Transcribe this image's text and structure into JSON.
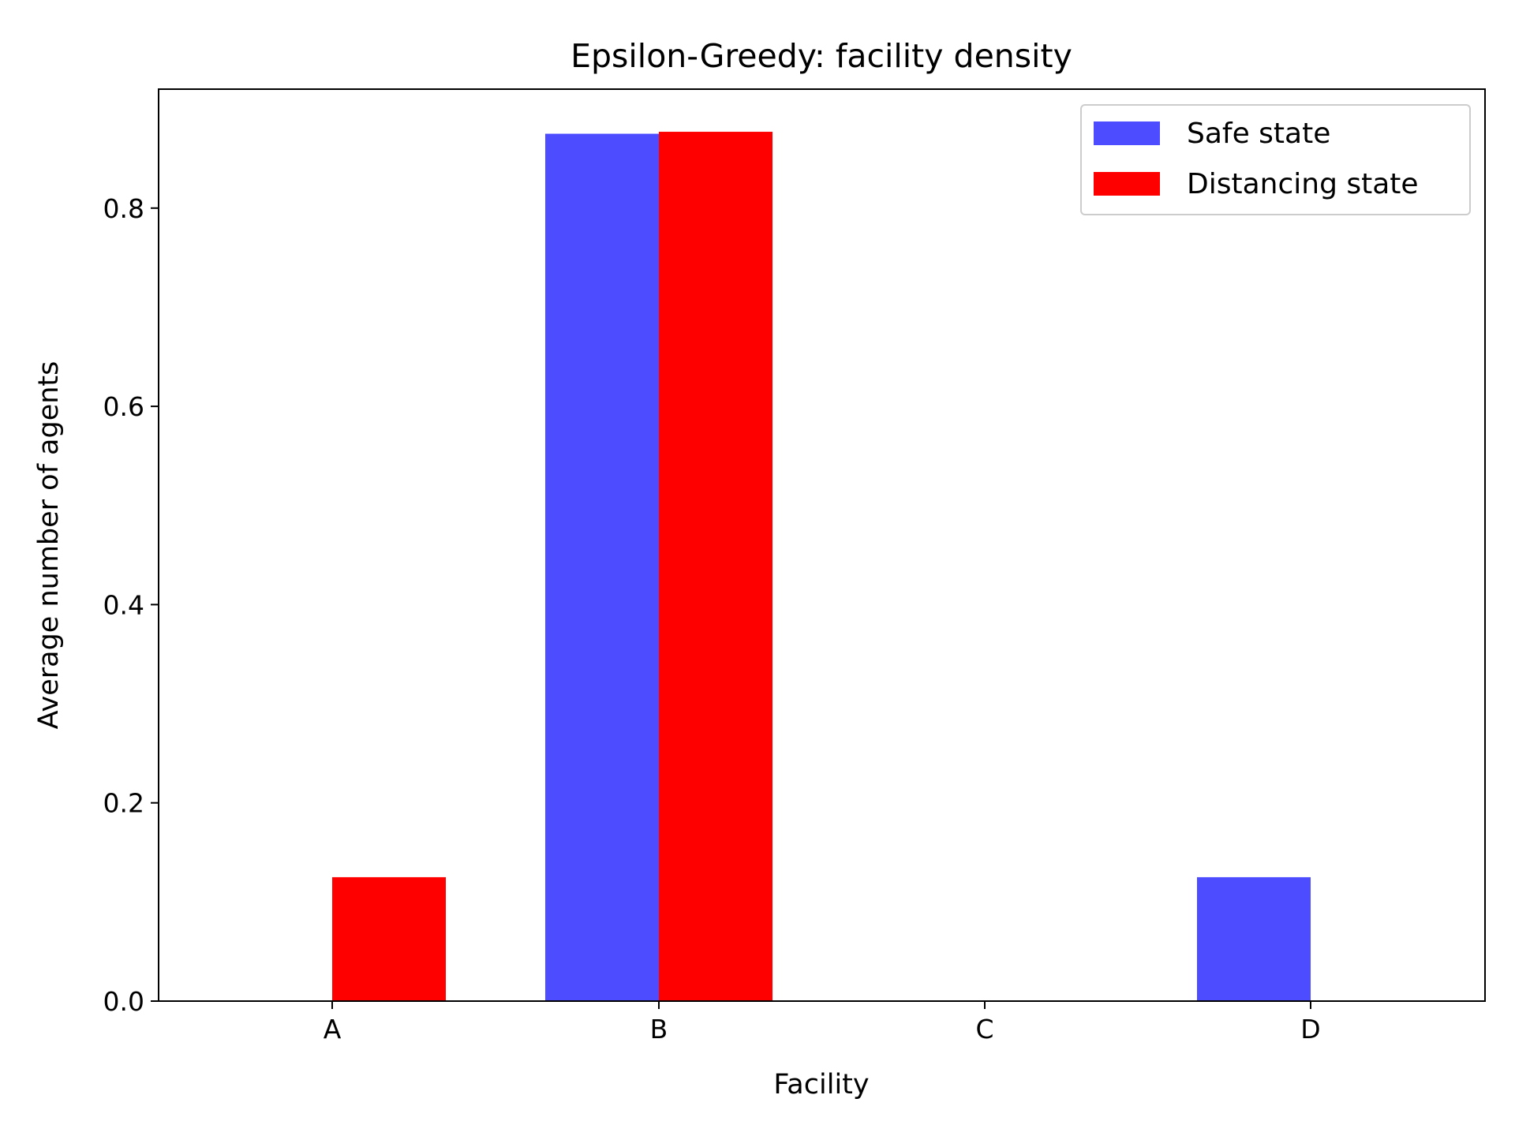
{
  "chart_data": {
    "type": "bar",
    "title": "Epsilon-Greedy: facility density",
    "xlabel": "Facility",
    "ylabel": "Average number of agents",
    "categories": [
      "A",
      "B",
      "C",
      "D"
    ],
    "series": [
      {
        "name": "Safe state",
        "values": [
          0.0,
          0.875,
          0.0,
          0.125
        ],
        "color": "#4d4dff"
      },
      {
        "name": "Distancing state",
        "values": [
          0.125,
          0.877,
          0.0,
          0.0
        ],
        "color": "#ff0000"
      }
    ],
    "ylim": [
      0,
      0.92
    ],
    "yticks": [
      0.0,
      0.2,
      0.4,
      0.6,
      0.8
    ],
    "ytick_labels": [
      "0.0",
      "0.2",
      "0.4",
      "0.6",
      "0.8"
    ],
    "grid": false,
    "legend_position": "top-right"
  }
}
